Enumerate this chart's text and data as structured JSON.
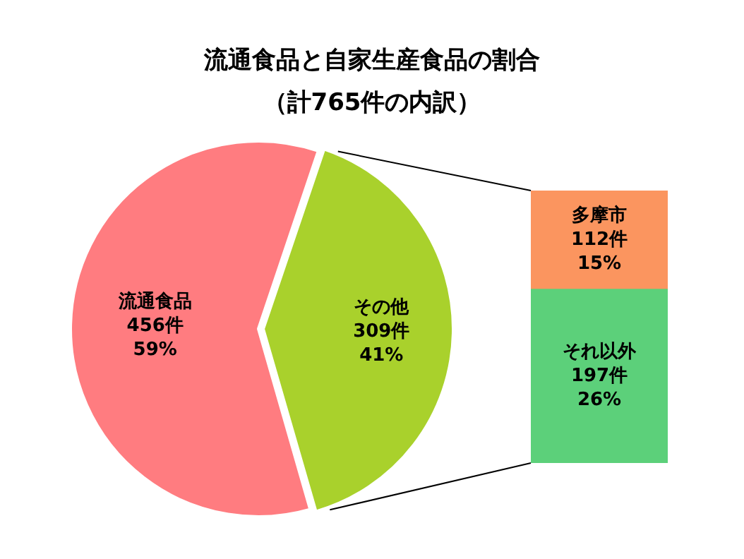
{
  "chart_data": [
    {
      "type": "pie",
      "title": "流通食品と自家生産食品の割合",
      "subtitle": "（計765件の内訳）",
      "categories": [
        "流通食品",
        "その他"
      ],
      "values": [
        456,
        309
      ],
      "colors": [
        "#ff7c80",
        "#a9d12c"
      ],
      "value_labels": [
        "456件\n59%",
        "309件\n41%"
      ],
      "legend": false
    },
    {
      "type": "bar",
      "stacked": true,
      "categories": [
        null
      ],
      "series": [
        {
          "name": "それ以外",
          "color": "#5cd07a",
          "values": [
            197
          ],
          "value_labels": [
            "197件\n26%"
          ]
        },
        {
          "name": "多摩市",
          "color": "#fb955f",
          "values": [
            112
          ],
          "value_labels": [
            "112件\n15%"
          ]
        }
      ],
      "tick_labels": false,
      "legend": false
    }
  ]
}
